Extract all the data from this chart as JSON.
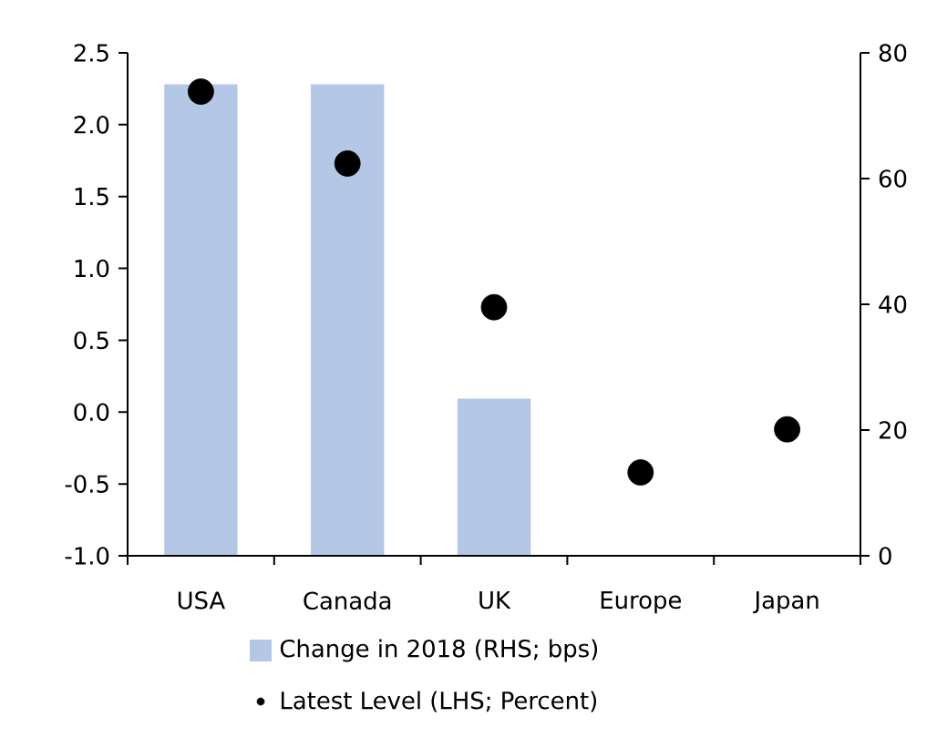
{
  "chart_data": {
    "type": "bar",
    "categories": [
      "USA",
      "Canada",
      "UK",
      "Europe",
      "Japan"
    ],
    "series": [
      {
        "name": "Change in 2018 (RHS; bps)",
        "type": "bar",
        "axis": "y2",
        "color": "#b4c7e7",
        "values": [
          75,
          75,
          25,
          0,
          0
        ]
      },
      {
        "name": "Latest Level (LHS; Percent)",
        "type": "scatter",
        "axis": "y",
        "color": "#000000",
        "marker": "circle",
        "values": [
          2.23,
          1.73,
          0.73,
          -0.42,
          -0.12
        ]
      }
    ],
    "ylim": [
      -1,
      2.5
    ],
    "yticks": [
      {
        "value": -1,
        "label": "-1.0"
      },
      {
        "value": -0.5,
        "label": "-0.5"
      },
      {
        "value": 0,
        "label": "0.0"
      },
      {
        "value": 0.5,
        "label": "0.5"
      },
      {
        "value": 1,
        "label": "1.0"
      },
      {
        "value": 1.5,
        "label": "1.5"
      },
      {
        "value": 2,
        "label": "2.0"
      },
      {
        "value": 2.5,
        "label": "2.5"
      }
    ],
    "y2lim": [
      0,
      80
    ],
    "y2ticks": [
      0,
      20,
      40,
      60,
      80
    ],
    "legend": "bottom"
  }
}
